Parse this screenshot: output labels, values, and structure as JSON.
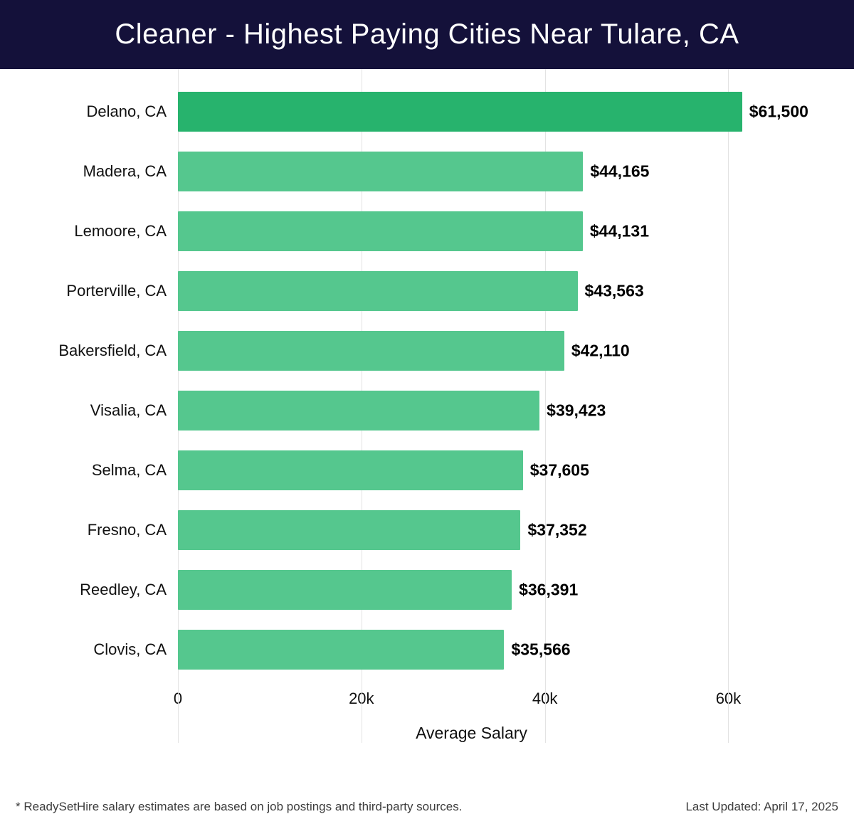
{
  "header": {
    "title": "Cleaner - Highest Paying Cities Near Tulare, CA"
  },
  "chart_data": {
    "type": "bar",
    "orientation": "horizontal",
    "title": "Cleaner - Highest Paying Cities Near Tulare, CA",
    "categories": [
      "Delano, CA",
      "Madera, CA",
      "Lemoore, CA",
      "Porterville, CA",
      "Bakersfield, CA",
      "Visalia, CA",
      "Selma, CA",
      "Fresno, CA",
      "Reedley, CA",
      "Clovis, CA"
    ],
    "values": [
      61500,
      44165,
      44131,
      43563,
      42110,
      39423,
      37605,
      37352,
      36391,
      35566
    ],
    "value_labels": [
      "$61,500",
      "$44,165",
      "$44,131",
      "$43,563",
      "$42,110",
      "$39,423",
      "$37,605",
      "$37,352",
      "$36,391",
      "$35,566"
    ],
    "xlabel": "Average Salary",
    "xlim": [
      0,
      64000
    ],
    "x_ticks": [
      {
        "value": 0,
        "label": "0"
      },
      {
        "value": 20000,
        "label": "20k"
      },
      {
        "value": 40000,
        "label": "40k"
      },
      {
        "value": 60000,
        "label": "60k"
      }
    ],
    "grid": "vertical",
    "legend": "none",
    "colors": {
      "bar_highlight": "#27b36d",
      "bar_normal": "#55c78e",
      "header_background": "#14113a",
      "gridline": "#e3e3e3"
    }
  },
  "footer": {
    "note": "* ReadySetHire salary estimates are based on job postings and third-party sources.",
    "last_updated": "Last Updated: April 17, 2025"
  }
}
